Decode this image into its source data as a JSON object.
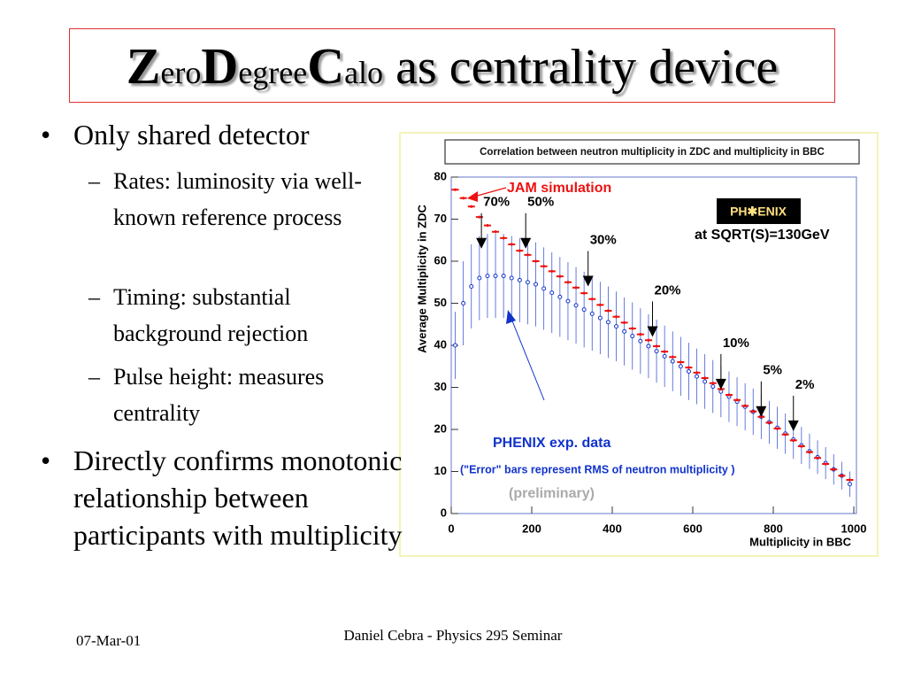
{
  "title_parts": [
    "Z",
    "ero",
    "D",
    "egree",
    "C",
    "alo",
    "as centrality device"
  ],
  "bullets": [
    {
      "text": "Only shared detector",
      "sub": [
        "Rates: luminosity via well-known reference process",
        "Timing: substantial background rejection",
        "Pulse height: measures centrality"
      ]
    },
    {
      "text": "Directly confirms monotonic relationship between participants with multiplicity"
    }
  ],
  "footer": {
    "date": "07-Mar-01",
    "center": "Daniel Cebra - Physics 295 Seminar"
  },
  "chart_data": {
    "type": "scatter",
    "title": "Correlation between neutron multiplicity in ZDC and multiplicity in BBC",
    "xlabel": "Multiplicity in BBC",
    "ylabel": "Average Multiplicity in ZDC",
    "xlim": [
      0,
      1000
    ],
    "ylim": [
      0,
      80
    ],
    "xticks": [
      0,
      200,
      400,
      600,
      800,
      1000
    ],
    "yticks": [
      0,
      10,
      20,
      30,
      40,
      50,
      60,
      70,
      80
    ],
    "x": [
      10,
      30,
      50,
      70,
      90,
      110,
      130,
      150,
      170,
      190,
      210,
      230,
      250,
      270,
      290,
      310,
      330,
      350,
      370,
      390,
      410,
      430,
      450,
      470,
      490,
      510,
      530,
      550,
      570,
      590,
      610,
      630,
      650,
      670,
      690,
      710,
      730,
      750,
      770,
      790,
      810,
      830,
      850,
      870,
      890,
      910,
      930,
      950,
      970,
      990
    ],
    "series": [
      {
        "name": "JAM simulation",
        "color": "#ee1111",
        "values": [
          77,
          75,
          73,
          70.5,
          68.5,
          67,
          65.5,
          64,
          62.5,
          61.5,
          60,
          58.8,
          57.6,
          56.4,
          55,
          53.7,
          52.4,
          51,
          49.6,
          48.2,
          46.8,
          45.4,
          44,
          42.6,
          41.2,
          39.8,
          38.5,
          37.2,
          36,
          34.7,
          33.5,
          32.2,
          31,
          29.6,
          28.2,
          27,
          25.6,
          24.3,
          23,
          21.6,
          20.2,
          18.8,
          17.4,
          16,
          14.6,
          13.2,
          11.8,
          10.5,
          9,
          8
        ]
      },
      {
        "name": "PHENIX exp. data",
        "color": "#1133cc",
        "values": [
          40,
          50,
          54,
          56,
          56.5,
          56.5,
          56.5,
          56,
          55.5,
          55,
          54.5,
          53.5,
          52.5,
          51.5,
          50.5,
          49.5,
          48.5,
          47.5,
          46.5,
          45.5,
          44.5,
          43.3,
          42.2,
          41,
          39.8,
          38.6,
          37.4,
          36.2,
          35,
          33.8,
          32.6,
          31.4,
          30.2,
          29,
          27.8,
          26.6,
          25.4,
          24.2,
          23,
          21.7,
          20.4,
          19,
          17.6,
          16.2,
          14.8,
          13.4,
          12,
          10.5,
          9,
          7
        ],
        "errors": [
          8,
          10,
          10,
          10,
          10,
          10,
          10,
          10,
          10,
          10,
          10,
          9.8,
          9.6,
          9.5,
          9.3,
          9.1,
          9,
          8.8,
          8.6,
          8.5,
          8.3,
          8.1,
          8,
          7.8,
          7.6,
          7.5,
          7.3,
          7.1,
          7,
          6.8,
          6.6,
          6.5,
          6.3,
          6.1,
          6,
          5.8,
          5.6,
          5.5,
          5.3,
          5.1,
          5,
          4.8,
          4.6,
          4.4,
          4.2,
          4,
          3.8,
          3.6,
          3.3,
          3
        ]
      }
    ],
    "annotations": [
      {
        "label": "70%",
        "x": 75,
        "y": 63
      },
      {
        "label": "50%",
        "x": 185,
        "y": 63
      },
      {
        "label": "30%",
        "x": 340,
        "y": 54
      },
      {
        "label": "20%",
        "x": 500,
        "y": 42
      },
      {
        "label": "10%",
        "x": 670,
        "y": 29.5
      },
      {
        "label": "5%",
        "x": 770,
        "y": 23
      },
      {
        "label": "2%",
        "x": 850,
        "y": 19.6
      }
    ],
    "notes": {
      "errors": "(\"Error\" bars represent RMS of neutron multiplicity )",
      "preliminary": "(preliminary)",
      "energy": "at SQRT(S)=130GeV",
      "logo": "PH✱ENIX"
    }
  }
}
